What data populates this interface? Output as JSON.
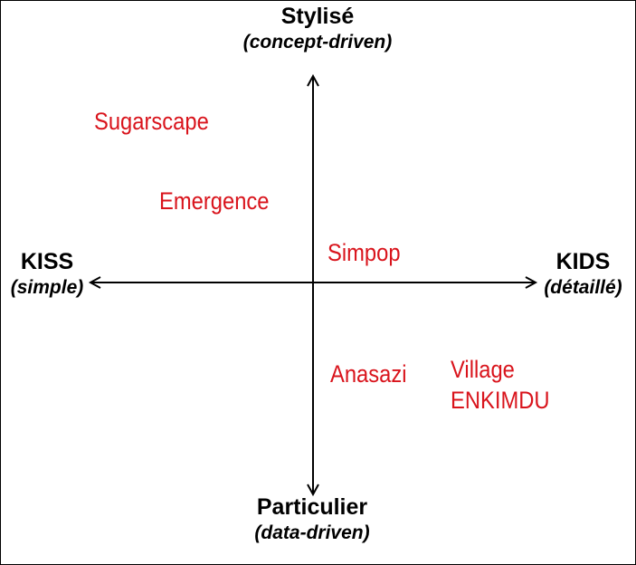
{
  "axes": {
    "top": {
      "label": "Stylisé",
      "sublabel": "(concept-driven)"
    },
    "bottom": {
      "label": "Particulier",
      "sublabel": "(data-driven)"
    },
    "left": {
      "label": "KISS",
      "sublabel": "(simple)"
    },
    "right": {
      "label": "KIDS",
      "sublabel": "(détaillé)"
    }
  },
  "items": {
    "sugarscape": "Sugarscape",
    "emergence": "Emergence",
    "simpop": "Simpop",
    "anasazi": "Anasazi",
    "village_line1": "Village",
    "village_line2": "ENKIMDU"
  },
  "colors": {
    "axis": "#000000",
    "item_text": "#d9141c",
    "background": "#ffffff"
  }
}
